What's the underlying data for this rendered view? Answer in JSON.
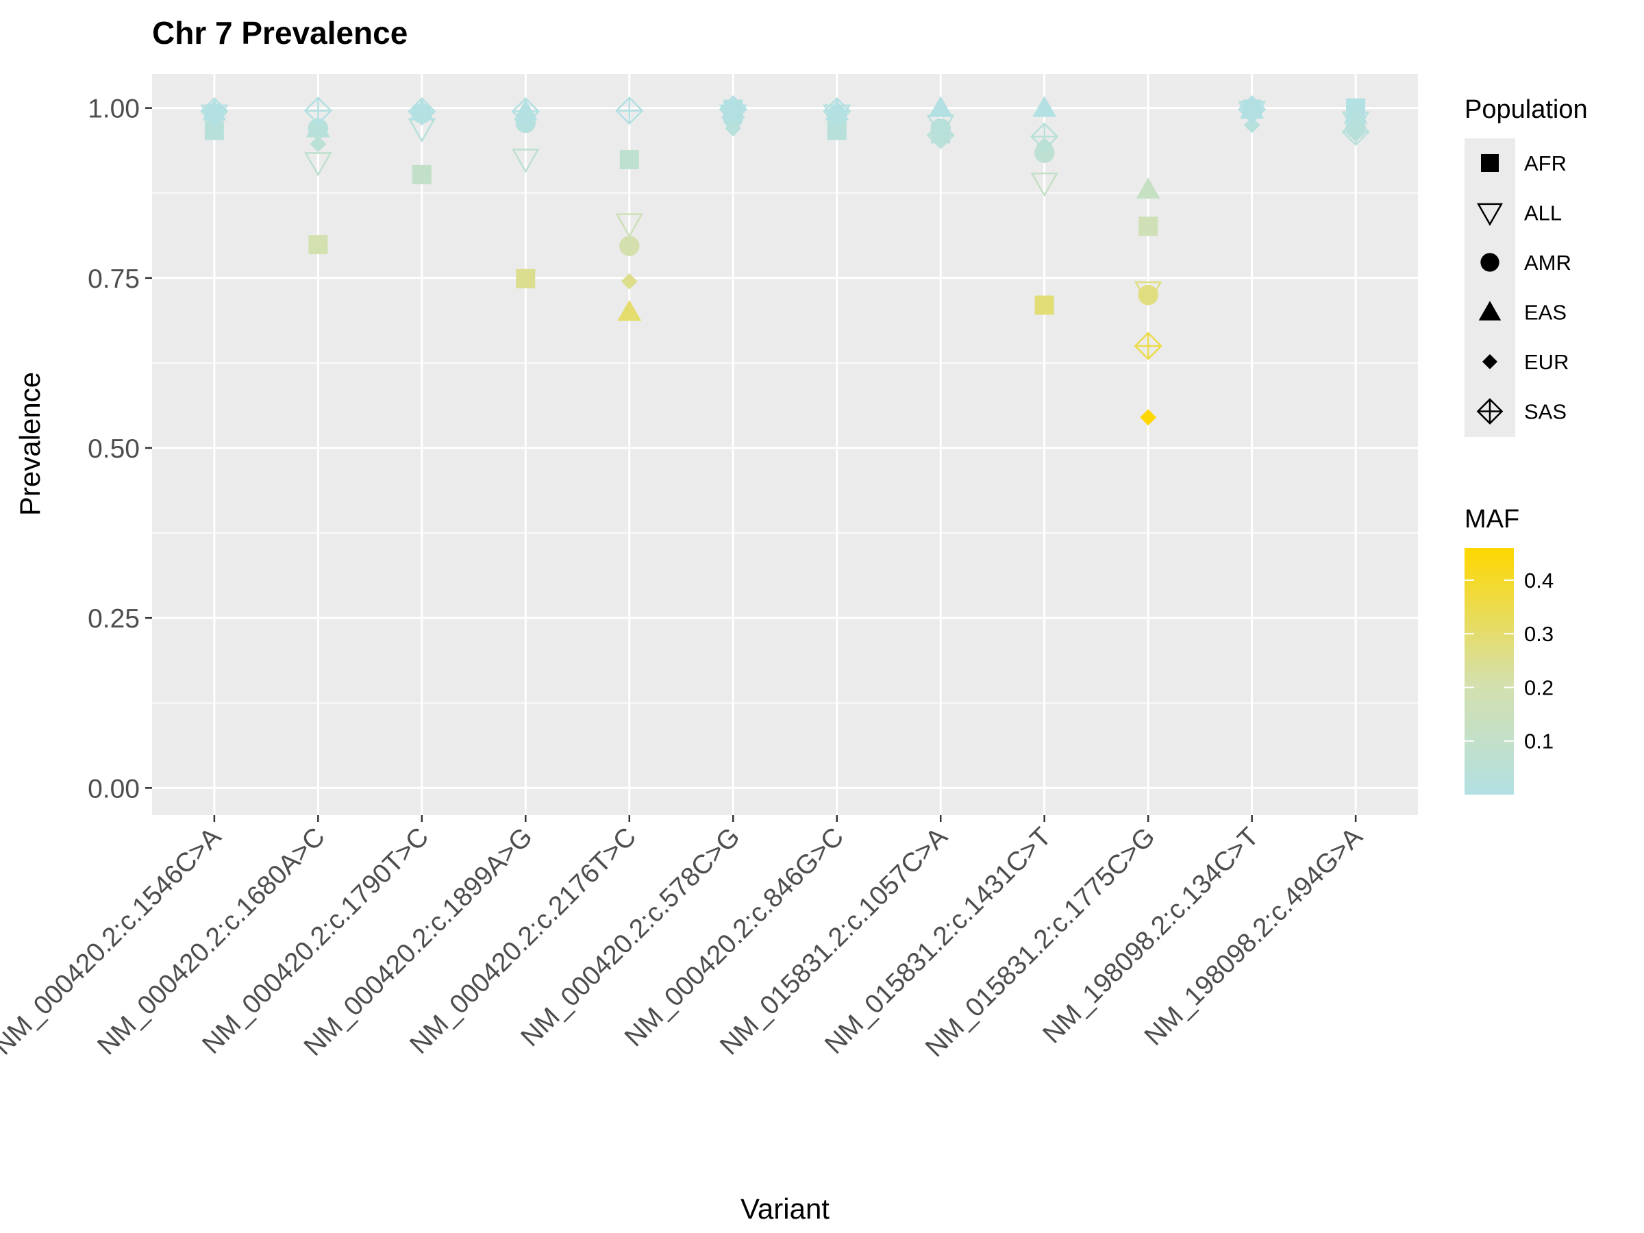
{
  "chart_data": {
    "type": "scatter",
    "title": "Chr 7 Prevalence",
    "xlabel": "Variant",
    "ylabel": "Prevalence",
    "ylim": [
      -0.04,
      1.05
    ],
    "yticks": [
      0.0,
      0.25,
      0.5,
      0.75,
      1.0
    ],
    "ytick_labels": [
      "0.00",
      "0.25",
      "0.50",
      "0.75",
      "1.00"
    ],
    "grid": true,
    "legend_position": "right",
    "categories": [
      "NM_000420.2:c.1546C>A",
      "NM_000420.2:c.1680A>C",
      "NM_000420.2:c.1790T>C",
      "NM_000420.2:c.1899A>G",
      "NM_000420.2:c.2176T>C",
      "NM_000420.2:c.578C>G",
      "NM_000420.2:c.846G>C",
      "NM_015831.2:c.1057C>A",
      "NM_015831.2:c.1431C>T",
      "NM_015831.2:c.1775C>G",
      "NM_198098.2:c.134C>T",
      "NM_198098.2:c.494G>A"
    ],
    "shape_legend": {
      "title": "Population",
      "entries": [
        {
          "name": "AFR",
          "shape": "square"
        },
        {
          "name": "ALL",
          "shape": "triangle-down-open"
        },
        {
          "name": "AMR",
          "shape": "circle"
        },
        {
          "name": "EAS",
          "shape": "triangle-up"
        },
        {
          "name": "EUR",
          "shape": "diamond"
        },
        {
          "name": "SAS",
          "shape": "diamond-plus-open"
        }
      ]
    },
    "color_legend": {
      "title": "MAF",
      "range": [
        0.0,
        0.46
      ],
      "ticks": [
        0.1,
        0.2,
        0.3,
        0.4
      ],
      "tick_labels": [
        "0.1",
        "0.2",
        "0.3",
        "0.4"
      ],
      "low_color": "#b2e0e3",
      "mid_color": "#d4e0ad",
      "high_color": "#ffd700"
    },
    "series": [
      {
        "name": "AFR",
        "points": [
          {
            "x": 0,
            "y": 0.967
          },
          {
            "x": 1,
            "y": 0.799
          },
          {
            "x": 2,
            "y": 0.902
          },
          {
            "x": 3,
            "y": 0.749
          },
          {
            "x": 4,
            "y": 0.924
          },
          {
            "x": 5,
            "y": 0.998
          },
          {
            "x": 6,
            "y": 0.967
          },
          {
            "x": 7,
            "y": 0.962
          },
          {
            "x": 8,
            "y": 0.71
          },
          {
            "x": 9,
            "y": 0.826
          },
          {
            "x": 10,
            "y": 0.998
          },
          {
            "x": 11,
            "y": 1.0
          }
        ]
      },
      {
        "name": "ALL",
        "points": [
          {
            "x": 0,
            "y": 0.99
          },
          {
            "x": 1,
            "y": 0.92
          },
          {
            "x": 2,
            "y": 0.97
          },
          {
            "x": 3,
            "y": 0.925
          },
          {
            "x": 4,
            "y": 0.83
          },
          {
            "x": 5,
            "y": 0.99
          },
          {
            "x": 6,
            "y": 0.99
          },
          {
            "x": 7,
            "y": 0.975
          },
          {
            "x": 8,
            "y": 0.89
          },
          {
            "x": 9,
            "y": 0.73
          },
          {
            "x": 10,
            "y": 0.995
          },
          {
            "x": 11,
            "y": 0.98
          }
        ]
      },
      {
        "name": "AMR",
        "points": [
          {
            "x": 0,
            "y": 0.992
          },
          {
            "x": 1,
            "y": 0.97
          },
          {
            "x": 2,
            "y": 0.992
          },
          {
            "x": 3,
            "y": 0.978
          },
          {
            "x": 4,
            "y": 0.797
          },
          {
            "x": 5,
            "y": 0.985
          },
          {
            "x": 6,
            "y": 0.99
          },
          {
            "x": 7,
            "y": 0.97
          },
          {
            "x": 8,
            "y": 0.934
          },
          {
            "x": 9,
            "y": 0.725
          },
          {
            "x": 10,
            "y": 0.998
          },
          {
            "x": 11,
            "y": 0.97
          }
        ]
      },
      {
        "name": "EAS",
        "points": [
          {
            "x": 0,
            "y": 0.995
          },
          {
            "x": 1,
            "y": 0.97
          },
          {
            "x": 2,
            "y": 0.995
          },
          {
            "x": 3,
            "y": 0.995
          },
          {
            "x": 4,
            "y": 0.7
          },
          {
            "x": 5,
            "y": 0.998
          },
          {
            "x": 6,
            "y": 0.995
          },
          {
            "x": 7,
            "y": 1.0
          },
          {
            "x": 8,
            "y": 1.0
          },
          {
            "x": 9,
            "y": 0.88
          },
          {
            "x": 10,
            "y": 0.998
          },
          {
            "x": 11,
            "y": 0.99
          }
        ]
      },
      {
        "name": "EUR",
        "points": [
          {
            "x": 0,
            "y": 0.995
          },
          {
            "x": 1,
            "y": 0.947
          },
          {
            "x": 2,
            "y": 0.99
          },
          {
            "x": 3,
            "y": 0.99
          },
          {
            "x": 4,
            "y": 0.745
          },
          {
            "x": 5,
            "y": 0.97
          },
          {
            "x": 6,
            "y": 0.99
          },
          {
            "x": 7,
            "y": 0.955
          },
          {
            "x": 8,
            "y": 0.945
          },
          {
            "x": 9,
            "y": 0.545
          },
          {
            "x": 10,
            "y": 0.975
          },
          {
            "x": 11,
            "y": 0.962
          }
        ]
      },
      {
        "name": "SAS",
        "points": [
          {
            "x": 0,
            "y": 0.995
          },
          {
            "x": 1,
            "y": 0.996
          },
          {
            "x": 2,
            "y": 0.995
          },
          {
            "x": 3,
            "y": 0.995
          },
          {
            "x": 4,
            "y": 0.996
          },
          {
            "x": 5,
            "y": 0.998
          },
          {
            "x": 6,
            "y": 0.995
          },
          {
            "x": 7,
            "y": 0.96
          },
          {
            "x": 8,
            "y": 0.958
          },
          {
            "x": 9,
            "y": 0.65
          },
          {
            "x": 10,
            "y": 0.998
          },
          {
            "x": 11,
            "y": 0.965
          }
        ]
      }
    ]
  }
}
